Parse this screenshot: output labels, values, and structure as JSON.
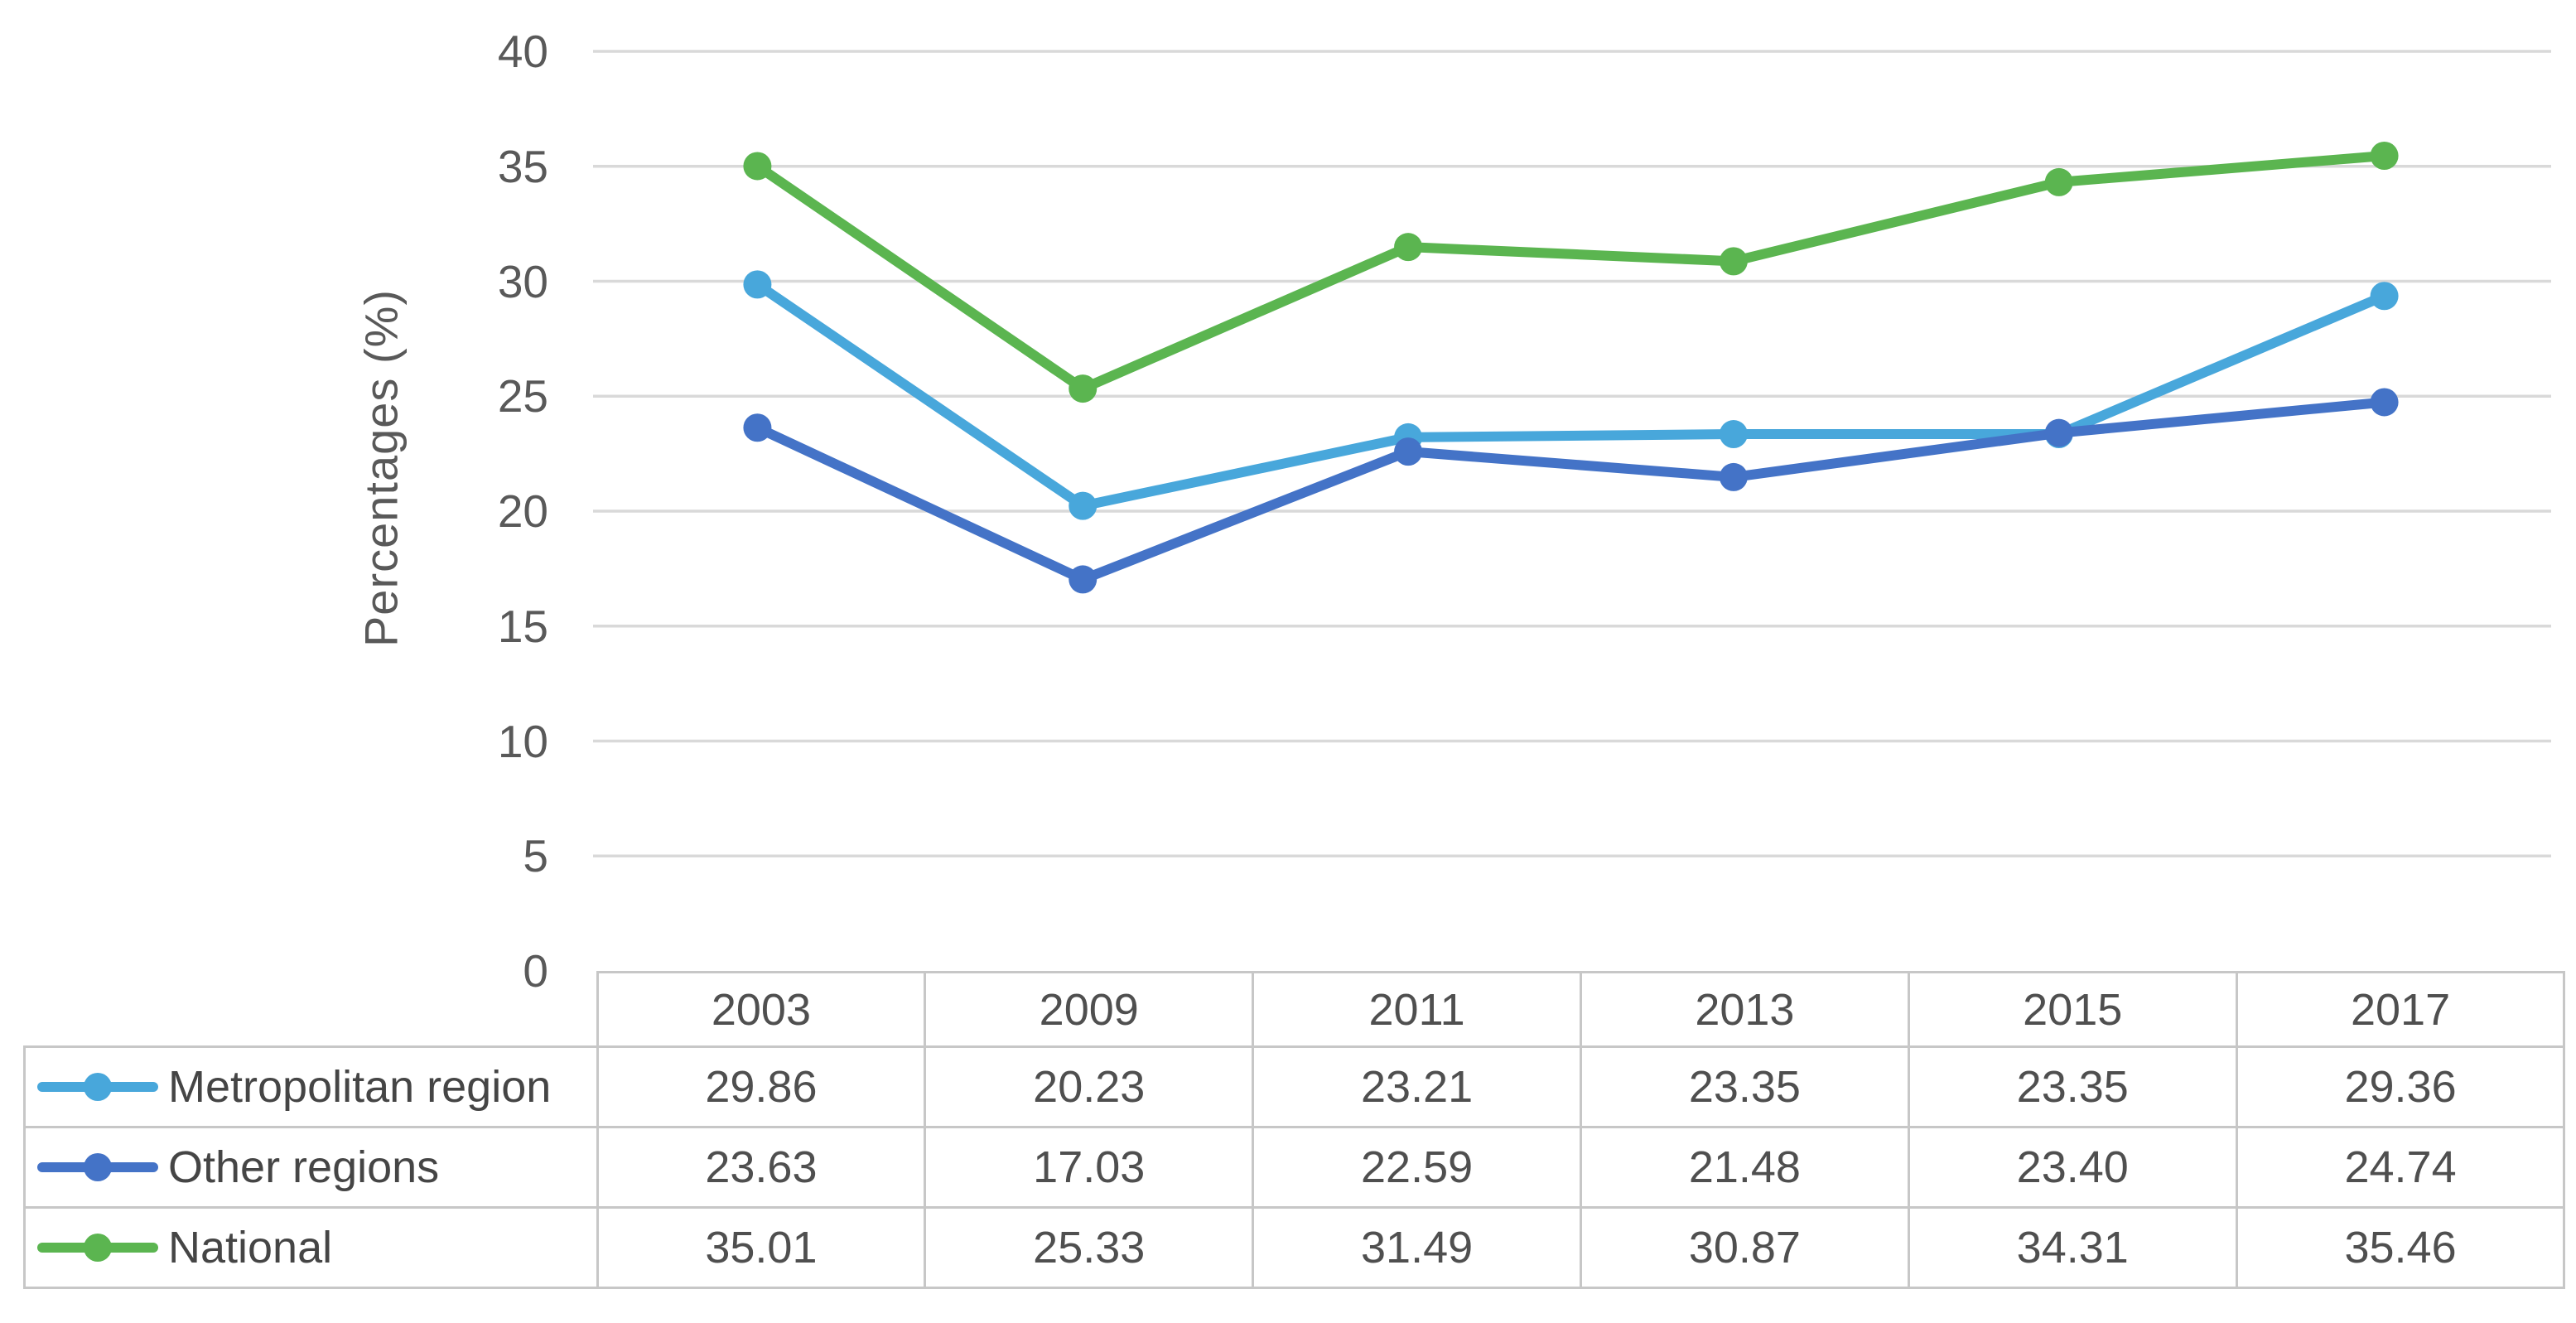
{
  "chart_data": {
    "type": "line",
    "categories": [
      "2003",
      "2009",
      "2011",
      "2013",
      "2015",
      "2017"
    ],
    "series": [
      {
        "name": "Metropolitan region",
        "color": "#48A7DB",
        "values": [
          29.86,
          20.23,
          23.21,
          23.35,
          23.35,
          29.36
        ]
      },
      {
        "name": "Other regions",
        "color": "#4473C7",
        "values": [
          23.63,
          17.03,
          22.59,
          21.48,
          23.4,
          24.74
        ]
      },
      {
        "name": "National",
        "color": "#5BB550",
        "values": [
          35.01,
          25.33,
          31.49,
          30.87,
          34.31,
          35.46
        ]
      }
    ],
    "title": "",
    "xlabel": "",
    "ylabel": "Percentages (%)",
    "ylim": [
      0,
      40
    ],
    "yticks": [
      0,
      5,
      10,
      15,
      20,
      25,
      30,
      35,
      40
    ],
    "grid": true,
    "gridlines_shown_for": [
      5,
      10,
      15,
      20,
      25,
      30,
      35,
      40
    ],
    "legend_position": "table-left-column",
    "marker": "circle"
  },
  "table": {
    "corner_label": "",
    "column_headers": [
      "2003",
      "2009",
      "2011",
      "2013",
      "2015",
      "2017"
    ],
    "rows": [
      {
        "label": "Metropolitan region",
        "values": [
          "29.86",
          "20.23",
          "23.21",
          "23.35",
          "23.35",
          "29.36"
        ]
      },
      {
        "label": "Other regions",
        "values": [
          "23.63",
          "17.03",
          "22.59",
          "21.48",
          "23.40",
          "24.74"
        ]
      },
      {
        "label": "National",
        "values": [
          "35.01",
          "25.33",
          "31.49",
          "30.87",
          "34.31",
          "35.46"
        ]
      }
    ]
  },
  "colors": {
    "metropolitan_region": "#48A7DB",
    "other_regions": "#4473C7",
    "national": "#5BB550",
    "gridline": "#D9D9D9",
    "table_border": "#C7C7C7",
    "axis_text": "#595959",
    "table_text": "#4F4F4F",
    "background": "#FFFFFF"
  }
}
